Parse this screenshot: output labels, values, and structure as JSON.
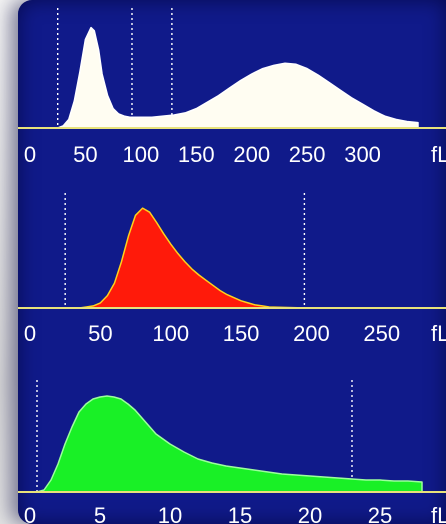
{
  "colors": {
    "panel_bg": "#101a8a",
    "axis": "#e8e27a",
    "marker": "#ffffff",
    "wbc_fill": "#fffdf2",
    "rbc_fill": "#ff1a0a",
    "plt_fill": "#19f026",
    "tick_text": "#ffffff"
  },
  "chart_data": [
    {
      "type": "area",
      "series": [
        {
          "values_x": [
            0,
            25,
            30,
            35,
            40,
            45,
            50,
            55,
            58,
            62,
            65,
            70,
            75,
            80,
            85,
            90,
            95,
            100,
            110,
            120,
            130,
            140,
            150,
            160,
            170,
            180,
            190,
            200,
            210,
            220,
            230,
            240,
            250,
            260,
            270,
            280,
            290,
            300,
            310,
            320,
            330,
            340,
            350
          ],
          "values_y": [
            0,
            0,
            2,
            8,
            25,
            52,
            82,
            93,
            90,
            72,
            50,
            30,
            18,
            13,
            11,
            10,
            10,
            10,
            10,
            11,
            12,
            14,
            18,
            24,
            30,
            37,
            44,
            50,
            55,
            58,
            60,
            59,
            55,
            49,
            42,
            35,
            28,
            22,
            16,
            11,
            8,
            6,
            5
          ]
        }
      ],
      "fill": "wbc",
      "xlim": [
        0,
        350
      ],
      "ylim": [
        0,
        100
      ],
      "xticks": [
        0,
        50,
        100,
        150,
        200,
        250,
        300
      ],
      "unit": "fL",
      "markers_x": [
        25,
        92,
        128
      ]
    },
    {
      "type": "area",
      "series": [
        {
          "values_x": [
            0,
            30,
            35,
            40,
            45,
            50,
            55,
            60,
            65,
            70,
            75,
            80,
            85,
            90,
            95,
            100,
            105,
            110,
            115,
            120,
            125,
            130,
            135,
            140,
            145,
            150,
            155,
            160,
            165,
            170,
            180,
            190,
            200,
            210,
            250,
            280
          ],
          "values_y": [
            0,
            0,
            0,
            1,
            2,
            5,
            12,
            24,
            45,
            70,
            90,
            97,
            93,
            83,
            72,
            62,
            53,
            45,
            38,
            32,
            27,
            22,
            17,
            13,
            10,
            7,
            5,
            3,
            2,
            1,
            0.6,
            0.2,
            0,
            0,
            0,
            0
          ]
        }
      ],
      "fill": "rbc",
      "xlim": [
        0,
        280
      ],
      "ylim": [
        0,
        100
      ],
      "xticks": [
        0,
        50,
        100,
        150,
        200,
        250
      ],
      "unit": "fL",
      "markers_x": [
        25,
        195
      ]
    },
    {
      "type": "area",
      "series": [
        {
          "values_x": [
            0,
            0.5,
            1,
            1.5,
            2,
            2.5,
            3,
            3.5,
            4,
            4.5,
            5,
            5.5,
            6,
            6.5,
            7,
            7.5,
            8,
            8.5,
            9,
            10,
            11,
            12,
            13,
            14,
            15,
            16,
            17,
            18,
            19,
            20,
            21,
            22,
            23,
            24,
            25,
            26,
            27,
            28
          ],
          "values_y": [
            0,
            0,
            2,
            12,
            28,
            48,
            65,
            80,
            88,
            93,
            95,
            96,
            95,
            93,
            88,
            82,
            74,
            66,
            58,
            48,
            40,
            33,
            29,
            26,
            24,
            22,
            20,
            18,
            17,
            16,
            15,
            14,
            13,
            12,
            12,
            11,
            11,
            10
          ]
        }
      ],
      "fill": "plt",
      "xlim": [
        0,
        28
      ],
      "ylim": [
        0,
        100
      ],
      "xticks": [
        0,
        5,
        10,
        15,
        20,
        25
      ],
      "unit": "fL",
      "markers_x": [
        0.5,
        23
      ]
    }
  ],
  "tick_labels": {
    "wbc": [
      "0",
      "50",
      "100",
      "150",
      "200",
      "250",
      "300"
    ],
    "rbc": [
      "0",
      "50",
      "100",
      "150",
      "200",
      "250"
    ],
    "plt": [
      "0",
      "5",
      "10",
      "15",
      "20",
      "25"
    ],
    "unit": "fL"
  }
}
